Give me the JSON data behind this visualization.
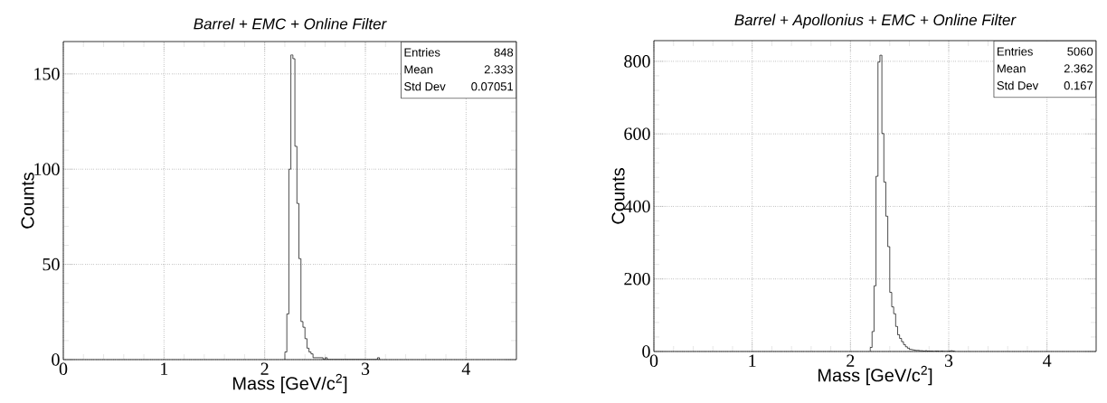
{
  "chart_data": [
    {
      "type": "histogram",
      "title": "Barrel + EMC + Online Filter",
      "xlabel": "Mass [GeV/c$^{2}$]",
      "ylabel": "Counts",
      "bins": [
        2.2,
        2.22,
        2.24,
        2.26,
        2.28,
        2.3,
        2.32,
        2.34,
        2.36,
        2.38,
        2.4,
        2.42,
        2.44,
        2.46,
        2.48,
        2.5,
        2.52,
        2.54,
        2.56,
        2.58,
        2.6,
        2.62,
        2.64,
        2.66,
        2.68,
        2.7,
        2.72,
        2.74,
        2.76,
        2.78,
        2.8,
        2.82,
        2.84,
        2.86,
        2.88,
        2.9,
        2.92,
        2.94,
        2.96,
        2.98,
        3.0,
        3.02,
        3.04,
        3.06,
        3.08,
        3.1,
        3.12,
        3.14
      ],
      "values": [
        4,
        24,
        100,
        160,
        158,
        112,
        82,
        53,
        20,
        17,
        11,
        6,
        4,
        3,
        1,
        1,
        1,
        1,
        1,
        0,
        1,
        0,
        0,
        0,
        0,
        0,
        0,
        0,
        0,
        0,
        0,
        0,
        0,
        0,
        0,
        0,
        0,
        0,
        0,
        0,
        0,
        0,
        0,
        0,
        0,
        0,
        1
      ],
      "color": "#000000",
      "xlim": [
        0,
        4.5
      ],
      "ylim": [
        0,
        167
      ],
      "xticks": [
        0,
        1,
        2,
        3,
        4
      ],
      "yticks": [
        0,
        50,
        100,
        150
      ],
      "grid": true,
      "annotations": [
        "Entries",
        "848",
        "Mean",
        "2.333",
        "Std Dev",
        "0.07051"
      ]
    },
    {
      "type": "histogram",
      "title": "Barrel + Apollonius + EMC + Online Filter",
      "xlabel": "Mass [GeV/c$^{2}$]",
      "ylabel": "Counts",
      "bins": [
        2.2,
        2.22,
        2.24,
        2.26,
        2.28,
        2.3,
        2.32,
        2.34,
        2.36,
        2.38,
        2.4,
        2.42,
        2.44,
        2.46,
        2.48,
        2.5,
        2.52,
        2.54,
        2.56,
        2.58,
        2.6,
        2.62,
        2.64,
        2.66,
        2.68,
        2.7,
        2.72,
        2.74,
        2.76,
        2.78,
        2.8,
        2.82,
        2.84,
        2.86,
        2.88,
        2.9,
        2.92,
        2.94,
        2.96,
        2.98,
        3.0,
        3.02,
        3.04,
        3.06
      ],
      "values": [
        11,
        55,
        181,
        483,
        798,
        817,
        601,
        467,
        373,
        289,
        163,
        123,
        104,
        69,
        46,
        36,
        27,
        19,
        13,
        9,
        6,
        5,
        4,
        3,
        3,
        2,
        2,
        1,
        2,
        1,
        1,
        1,
        0,
        1,
        1,
        0,
        1,
        0,
        0,
        0,
        1,
        2,
        1
      ],
      "color": "#000000",
      "xlim": [
        0,
        4.5
      ],
      "ylim": [
        0,
        857
      ],
      "xticks": [
        0,
        1,
        2,
        3,
        4
      ],
      "yticks": [
        0,
        200,
        400,
        600,
        800
      ],
      "grid": true,
      "annotations": [
        "Entries",
        "5060",
        "Mean",
        "2.362",
        "Std Dev",
        "0.167"
      ]
    }
  ]
}
